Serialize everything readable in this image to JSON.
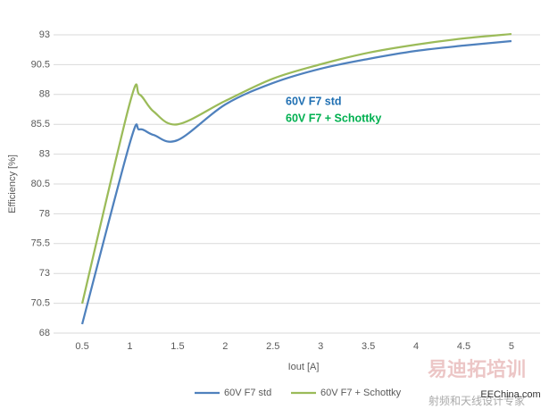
{
  "chart_data": {
    "type": "line",
    "x_label": "Iout [A]",
    "y_label": "Efficiency [%]",
    "x": [
      0.5,
      1,
      1.1,
      1.25,
      1.5,
      2,
      2.5,
      3,
      3.5,
      4,
      4.5,
      5
    ],
    "series": [
      {
        "name": "60V F7 std",
        "color": "#4f81bd",
        "label_color": "#1f6fb2",
        "values": [
          68.75,
          83.94,
          85.07,
          84.6,
          84.17,
          87.16,
          88.96,
          90.16,
          90.98,
          91.65,
          92.1,
          92.48
        ]
      },
      {
        "name": "60V F7 + Schottky",
        "color": "#9bbb59",
        "label_color": "#00b050",
        "values": [
          70.47,
          87.3,
          88.0,
          86.56,
          85.5,
          87.46,
          89.33,
          90.53,
          91.5,
          92.18,
          92.7,
          93.07
        ]
      }
    ],
    "xlim": [
      0.2,
      5.3
    ],
    "xticks": [
      0.5,
      1,
      1.5,
      2,
      2.5,
      3,
      3.5,
      4,
      4.5,
      5
    ],
    "ylim": [
      68,
      93
    ],
    "yticks": [
      68,
      70.5,
      73,
      75.5,
      78,
      80.5,
      83,
      85.5,
      88,
      90.5,
      93
    ],
    "grid": true,
    "legend": "bottom",
    "watermark": [
      "易迪拓培训",
      "射频和天线设计专家",
      "EEChina.com"
    ]
  }
}
